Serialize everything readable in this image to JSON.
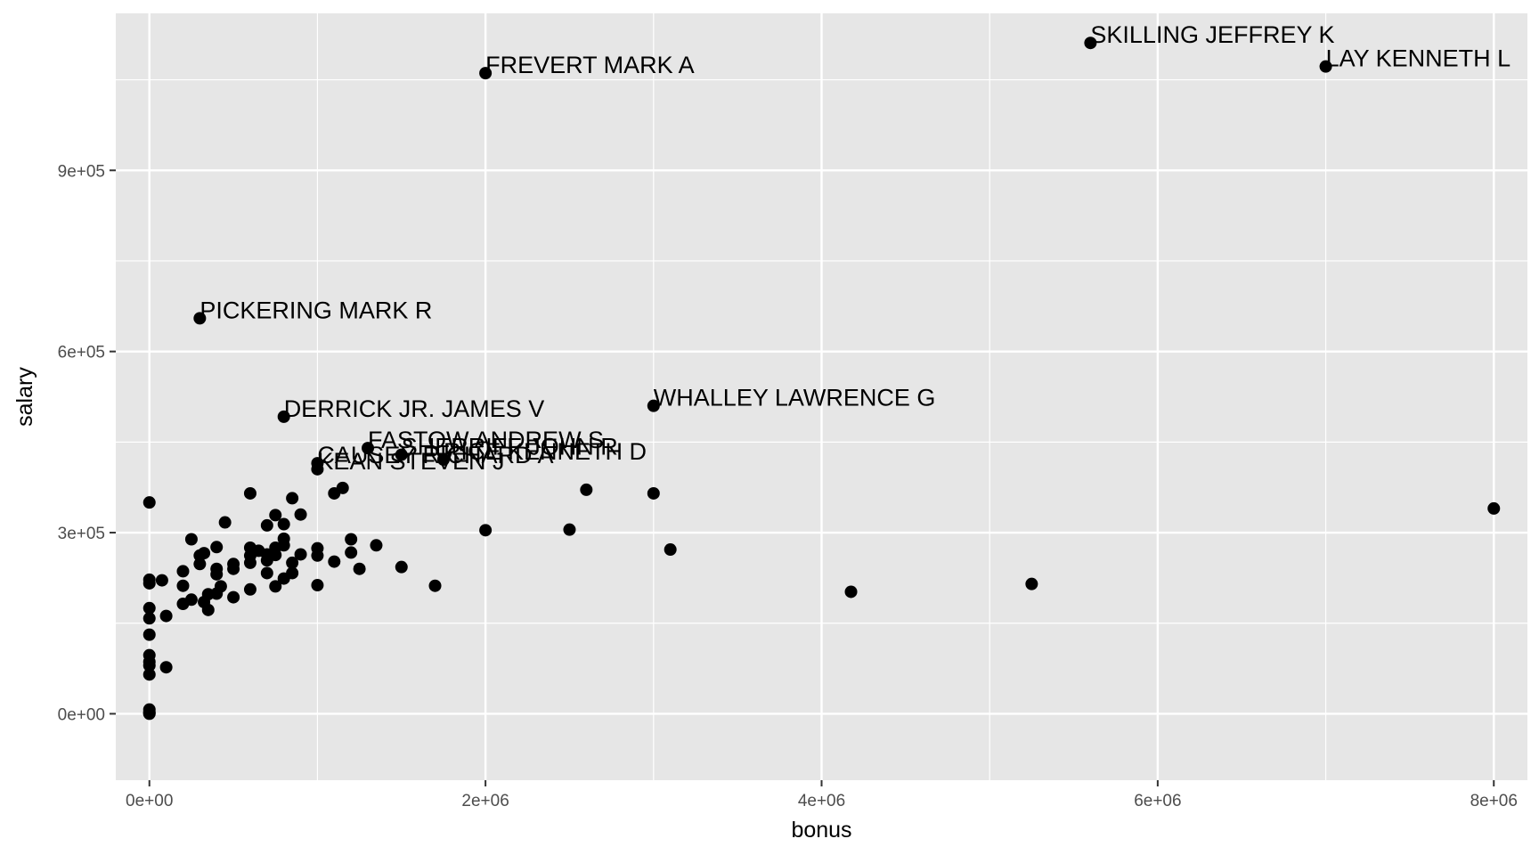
{
  "chart_data": {
    "type": "scatter",
    "title": "",
    "xlabel": "bonus",
    "ylabel": "salary",
    "xlim": [
      -200000,
      8200000
    ],
    "ylim": [
      -110000,
      1160000
    ],
    "x_ticks": [
      0,
      2000000,
      4000000,
      6000000,
      8000000
    ],
    "x_tick_labels": [
      "0e+00",
      "2e+06",
      "4e+06",
      "6e+06",
      "8e+06"
    ],
    "y_ticks": [
      0,
      300000,
      600000,
      900000
    ],
    "y_tick_labels": [
      "0e+00",
      "3e+05",
      "6e+05",
      "9e+05"
    ],
    "grid": true,
    "colors": {
      "panel": "#e6e6e6",
      "grid": "#ffffff",
      "point": "#000000",
      "text": "#000000",
      "tick": "#4d4d4d"
    },
    "labeled_points": [
      {
        "name": "SKILLING JEFFREY K",
        "x": 5600000,
        "y": 1111000
      },
      {
        "name": "LAY KENNETH L",
        "x": 7000000,
        "y": 1072000
      },
      {
        "name": "FREVERT MARK A",
        "x": 2000000,
        "y": 1061000
      },
      {
        "name": "PICKERING MARK R",
        "x": 300000,
        "y": 655000
      },
      {
        "name": "WHALLEY LAWRENCE G",
        "x": 3000000,
        "y": 510000
      },
      {
        "name": "DERRICK JR. JAMES V",
        "x": 800000,
        "y": 492000
      },
      {
        "name": "FASTOW ANDREW S",
        "x": 1300000,
        "y": 440000
      },
      {
        "name": "SHERRIFF JOHN R",
        "x": 1500000,
        "y": 429000
      },
      {
        "name": "RICE KENNETH D",
        "x": 1750000,
        "y": 421000
      },
      {
        "name": "CAUSEY RICHARD A",
        "x": 1000000,
        "y": 415000
      },
      {
        "name": "KEAN STEVEN J",
        "x": 1000000,
        "y": 405000
      }
    ],
    "points": [
      [
        8000000,
        340000
      ],
      [
        5250000,
        215000
      ],
      [
        4175000,
        202000
      ],
      [
        3100000,
        272000
      ],
      [
        3000000,
        365000
      ],
      [
        2600000,
        371000
      ],
      [
        2500000,
        305000
      ],
      [
        2000000,
        304000
      ],
      [
        1700000,
        212000
      ],
      [
        1500000,
        243000
      ],
      [
        1350000,
        279000
      ],
      [
        1250000,
        240000
      ],
      [
        1200000,
        267000
      ],
      [
        1200000,
        289000
      ],
      [
        1150000,
        374000
      ],
      [
        1100000,
        365000
      ],
      [
        1100000,
        252000
      ],
      [
        1000000,
        213000
      ],
      [
        1000000,
        262000
      ],
      [
        1000000,
        274000
      ],
      [
        900000,
        330000
      ],
      [
        900000,
        264000
      ],
      [
        850000,
        357000
      ],
      [
        850000,
        233000
      ],
      [
        850000,
        250000
      ],
      [
        800000,
        314000
      ],
      [
        800000,
        290000
      ],
      [
        800000,
        279000
      ],
      [
        800000,
        224000
      ],
      [
        750000,
        329000
      ],
      [
        750000,
        275000
      ],
      [
        750000,
        263000
      ],
      [
        750000,
        211000
      ],
      [
        700000,
        312000
      ],
      [
        700000,
        264000
      ],
      [
        700000,
        254000
      ],
      [
        700000,
        233000
      ],
      [
        650000,
        270000
      ],
      [
        600000,
        365000
      ],
      [
        600000,
        275000
      ],
      [
        600000,
        262000
      ],
      [
        600000,
        250000
      ],
      [
        600000,
        206000
      ],
      [
        500000,
        248000
      ],
      [
        500000,
        240000
      ],
      [
        500000,
        193000
      ],
      [
        450000,
        317000
      ],
      [
        425000,
        211000
      ],
      [
        400000,
        276000
      ],
      [
        400000,
        240000
      ],
      [
        400000,
        231000
      ],
      [
        400000,
        199000
      ],
      [
        350000,
        172000
      ],
      [
        350000,
        198000
      ],
      [
        325000,
        185000
      ],
      [
        325000,
        266000
      ],
      [
        300000,
        262000
      ],
      [
        300000,
        248000
      ],
      [
        250000,
        289000
      ],
      [
        250000,
        189000
      ],
      [
        200000,
        236000
      ],
      [
        200000,
        212000
      ],
      [
        200000,
        182000
      ],
      [
        100000,
        162000
      ],
      [
        100000,
        77000
      ],
      [
        75000,
        221000
      ],
      [
        0,
        350000
      ],
      [
        0,
        222000
      ],
      [
        0,
        216000
      ],
      [
        0,
        175000
      ],
      [
        0,
        158000
      ],
      [
        0,
        131000
      ],
      [
        0,
        97000
      ],
      [
        0,
        86000
      ],
      [
        0,
        80000
      ],
      [
        0,
        65000
      ],
      [
        0,
        7000
      ],
      [
        0,
        3000
      ],
      [
        0,
        0
      ],
      [
        0,
        1000
      ]
    ]
  }
}
